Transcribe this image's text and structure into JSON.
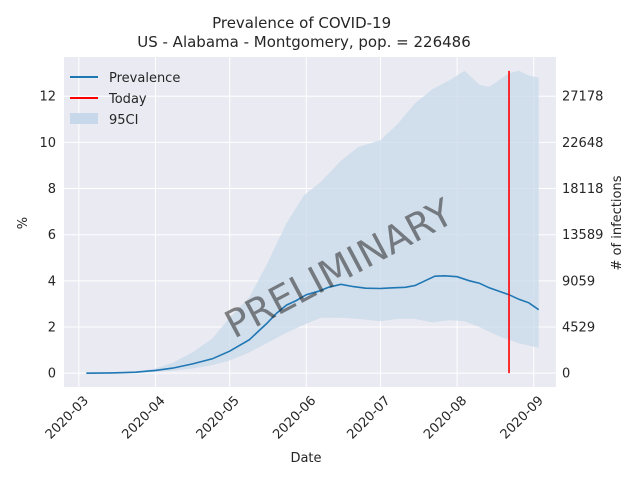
{
  "chart_data": {
    "type": "line",
    "title_line1": "Prevalence of COVID-19",
    "title_line2": "US - Alabama - Montgomery, pop. = 226486",
    "xlabel": "Date",
    "ylabel_left": "%",
    "ylabel_right": "# of infections",
    "watermark": "PRELIMINARY",
    "x_ticks": [
      "2020-03",
      "2020-04",
      "2020-05",
      "2020-06",
      "2020-07",
      "2020-08",
      "2020-09"
    ],
    "y_ticks_left": [
      "0",
      "2",
      "4",
      "6",
      "8",
      "10",
      "12"
    ],
    "y_ticks_right": [
      "0",
      "4529",
      "9059",
      "13589",
      "18118",
      "22648",
      "27178"
    ],
    "ylim": [
      -0.6,
      13.7
    ],
    "xlim": [
      "2020-02-24",
      "2020-09-10"
    ],
    "grid": true,
    "legend_position": "top-left",
    "legend": [
      "Prevalence",
      "Today",
      "95CI"
    ],
    "colors": {
      "prevalence": "#1f77b4",
      "today": "#ff0000",
      "ci": "#c6d8ea",
      "background": "#eaeaf2",
      "grid": "#ffffff"
    },
    "today_date": "2020-08-22",
    "today_ylim": [
      0,
      13.1
    ],
    "series": [
      {
        "name": "Prevalence",
        "x": [
          "2020-03-04",
          "2020-03-14",
          "2020-03-24",
          "2020-04-01",
          "2020-04-08",
          "2020-04-16",
          "2020-04-24",
          "2020-05-01",
          "2020-05-09",
          "2020-05-16",
          "2020-05-20",
          "2020-05-24",
          "2020-05-28",
          "2020-06-01",
          "2020-06-06",
          "2020-06-10",
          "2020-06-15",
          "2020-06-20",
          "2020-06-25",
          "2020-07-01",
          "2020-07-06",
          "2020-07-11",
          "2020-07-15",
          "2020-07-19",
          "2020-07-23",
          "2020-07-27",
          "2020-08-01",
          "2020-08-06",
          "2020-08-10",
          "2020-08-14",
          "2020-08-18",
          "2020-08-22",
          "2020-08-26",
          "2020-08-30",
          "2020-09-03"
        ],
        "values": [
          0,
          0.01,
          0.04,
          0.12,
          0.22,
          0.4,
          0.62,
          0.95,
          1.45,
          2.15,
          2.6,
          2.95,
          3.15,
          3.4,
          3.55,
          3.72,
          3.85,
          3.75,
          3.68,
          3.67,
          3.7,
          3.72,
          3.8,
          4.0,
          4.2,
          4.22,
          4.18,
          4.0,
          3.9,
          3.7,
          3.55,
          3.4,
          3.2,
          3.05,
          2.75
        ]
      },
      {
        "name": "95CI",
        "x": [
          "2020-03-04",
          "2020-03-14",
          "2020-03-24",
          "2020-04-01",
          "2020-04-08",
          "2020-04-16",
          "2020-04-24",
          "2020-05-01",
          "2020-05-09",
          "2020-05-16",
          "2020-05-24",
          "2020-05-31",
          "2020-06-07",
          "2020-06-15",
          "2020-06-22",
          "2020-07-01",
          "2020-07-08",
          "2020-07-15",
          "2020-07-22",
          "2020-07-29",
          "2020-08-04",
          "2020-08-10",
          "2020-08-14",
          "2020-08-18",
          "2020-08-22",
          "2020-08-26",
          "2020-08-30",
          "2020-09-03"
        ],
        "upper": [
          0,
          0.02,
          0.08,
          0.2,
          0.45,
          0.9,
          1.5,
          2.4,
          3.3,
          4.7,
          6.5,
          7.7,
          8.3,
          9.2,
          9.8,
          10.1,
          10.8,
          11.7,
          12.3,
          12.7,
          13.1,
          12.5,
          12.4,
          12.7,
          13.0,
          13.1,
          12.9,
          12.8
        ],
        "lower": [
          0,
          0.0,
          0.02,
          0.05,
          0.1,
          0.2,
          0.35,
          0.55,
          0.9,
          1.3,
          1.75,
          2.1,
          2.4,
          2.4,
          2.35,
          2.25,
          2.35,
          2.35,
          2.2,
          2.3,
          2.25,
          2.0,
          1.8,
          1.6,
          1.45,
          1.3,
          1.2,
          1.1
        ]
      }
    ]
  }
}
